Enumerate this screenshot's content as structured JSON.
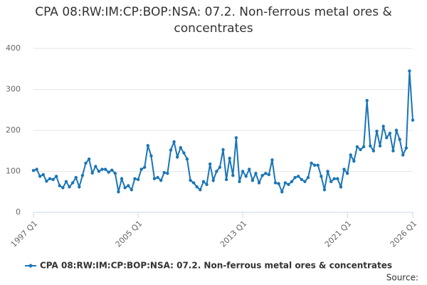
{
  "chart_data": {
    "type": "line",
    "title": "CPA 08:RW:IM:CP:BOP:NSA: 07.2. Non-ferrous metal ores & concentrates",
    "source": "Source:",
    "categories": [
      "1997 Q1",
      null,
      null,
      null,
      null,
      null,
      null,
      null,
      null,
      null,
      null,
      null,
      null,
      null,
      null,
      null,
      null,
      null,
      null,
      null,
      null,
      null,
      null,
      null,
      null,
      null,
      null,
      null,
      null,
      null,
      null,
      null,
      "2005 Q1",
      null,
      null,
      null,
      null,
      null,
      null,
      null,
      null,
      null,
      null,
      null,
      null,
      null,
      null,
      null,
      null,
      null,
      null,
      null,
      null,
      null,
      null,
      null,
      null,
      null,
      null,
      null,
      null,
      null,
      null,
      null,
      "2013 Q1",
      null,
      null,
      null,
      null,
      null,
      null,
      null,
      null,
      null,
      null,
      null,
      null,
      null,
      null,
      null,
      null,
      null,
      null,
      null,
      null,
      null,
      null,
      null,
      null,
      null,
      null,
      null,
      null,
      null,
      null,
      null,
      "2021 Q1",
      null,
      null,
      null,
      null,
      null,
      null,
      null,
      null,
      null,
      null,
      null,
      null,
      null,
      null,
      null,
      null,
      null,
      null,
      null,
      "2026 Q1"
    ],
    "series": [
      {
        "name": "CPA 08:RW:IM:CP:BOP:NSA: 07.2. Non-ferrous metal ores & concentrates",
        "color": "#1a75b7",
        "values": [
          102,
          105,
          88,
          92,
          76,
          82,
          80,
          88,
          65,
          60,
          75,
          62,
          72,
          85,
          62,
          90,
          120,
          130,
          96,
          112,
          100,
          105,
          105,
          98,
          103,
          95,
          50,
          82,
          60,
          65,
          55,
          82,
          80,
          105,
          110,
          163,
          138,
          82,
          85,
          78,
          97,
          95,
          152,
          172,
          135,
          158,
          145,
          130,
          78,
          72,
          62,
          55,
          75,
          68,
          118,
          78,
          100,
          110,
          153,
          80,
          132,
          90,
          182,
          75,
          100,
          88,
          105,
          78,
          95,
          72,
          90,
          95,
          92,
          128,
          72,
          70,
          50,
          72,
          68,
          75,
          85,
          88,
          80,
          75,
          85,
          120,
          115,
          115,
          88,
          55,
          100,
          75,
          82,
          82,
          62,
          105,
          95,
          140,
          125,
          160,
          153,
          160,
          273,
          162,
          150,
          198,
          162,
          210,
          182,
          193,
          150,
          200,
          178,
          140,
          157,
          345,
          225
        ]
      }
    ],
    "ylim": [
      0,
      400
    ],
    "yticks": [
      0,
      100,
      200,
      300,
      400
    ],
    "grid": true,
    "legend": "bottom"
  }
}
